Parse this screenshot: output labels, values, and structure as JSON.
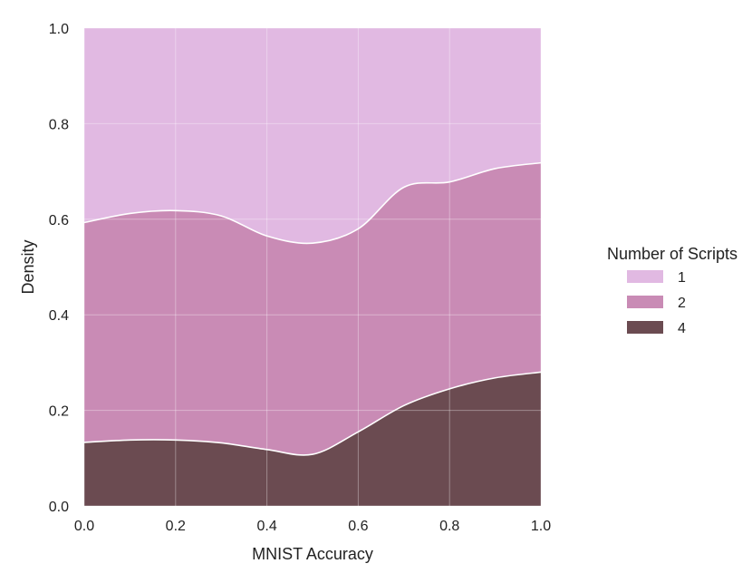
{
  "chart_data": {
    "type": "area",
    "stacked": "fill",
    "title": "",
    "xlabel": "MNIST Accuracy",
    "ylabel": "Density",
    "xlim": [
      0.0,
      1.0
    ],
    "ylim": [
      0.0,
      1.0
    ],
    "x_ticks": [
      "0.0",
      "0.2",
      "0.4",
      "0.6",
      "0.8",
      "1.0"
    ],
    "y_ticks": [
      "0.0",
      "0.2",
      "0.4",
      "0.6",
      "0.8",
      "1.0"
    ],
    "grid": true,
    "legend": {
      "title": "Number of Scripts",
      "placement": "right",
      "entries": [
        "1",
        "2",
        "4"
      ]
    },
    "x": [
      0.0,
      0.1,
      0.2,
      0.3,
      0.4,
      0.5,
      0.6,
      0.7,
      0.8,
      0.9,
      1.0
    ],
    "series": [
      {
        "name": "4",
        "color": "#6b4b51",
        "values": [
          0.133,
          0.138,
          0.138,
          0.132,
          0.118,
          0.108,
          0.155,
          0.21,
          0.245,
          0.268,
          0.28
        ]
      },
      {
        "name": "2",
        "color": "#c98bb5",
        "values": [
          0.46,
          0.474,
          0.48,
          0.475,
          0.447,
          0.442,
          0.425,
          0.457,
          0.433,
          0.438,
          0.438
        ]
      },
      {
        "name": "1",
        "color": "#e1b9e2",
        "values": [
          0.407,
          0.388,
          0.382,
          0.393,
          0.435,
          0.45,
          0.42,
          0.333,
          0.322,
          0.294,
          0.282
        ]
      }
    ]
  }
}
